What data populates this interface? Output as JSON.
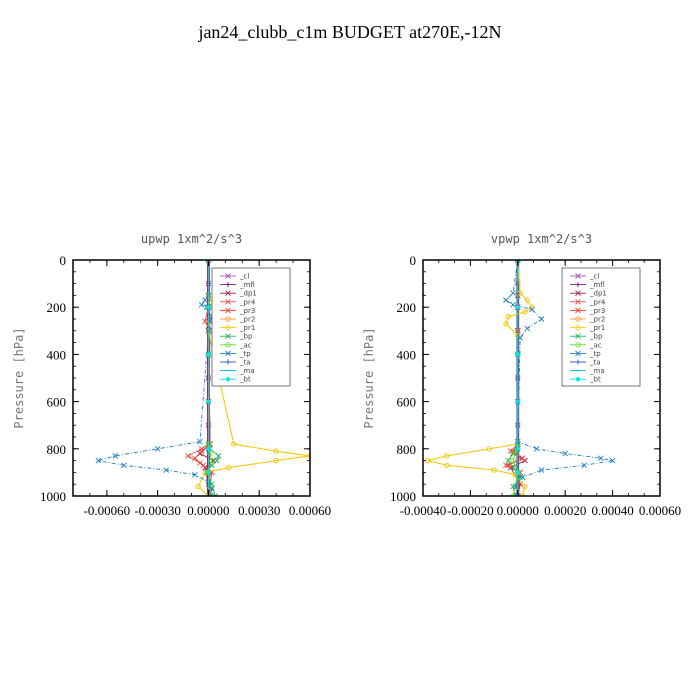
{
  "title": "jan24_clubb_c1m  BUDGET at270E,-12N",
  "colors": {
    "_cl": "#9b59b6",
    "_mfl": "#7a1f6e",
    "_dp1": "#a0204f",
    "_pr4": "#e0504a",
    "_pr3": "#ff3b2f",
    "_pr2": "#ff9a2e",
    "_pr1": "#f2d000",
    "_bp": "#22b45a",
    "_ac": "#66dd22",
    "_tp": "#1b7fc4",
    "_ta": "#2255cc",
    "_ma": "#00b4d8",
    "_bt": "#00e5e5"
  },
  "chart_data": [
    {
      "type": "line",
      "title": "upwp   1xm^2/s^3",
      "ylabel": "Pressure [hPa]",
      "xlim": [
        -0.0008,
        0.0006
      ],
      "ylim": [
        1000,
        0
      ],
      "xticks": [
        -0.0006,
        -0.0003,
        0.0,
        0.0003,
        0.0006
      ],
      "xtick_labels": [
        "-0.00060",
        "-0.00030",
        "0.00000",
        "0.00030",
        "0.00060"
      ],
      "yticks": [
        0,
        200,
        400,
        600,
        800,
        1000
      ],
      "ytick_labels": [
        "0",
        "200",
        "400",
        "600",
        "800",
        "1000"
      ],
      "legend_position": "top-right",
      "series": [
        {
          "name": "_cl",
          "marker": "cross",
          "x": [
            0,
            0,
            0,
            0,
            0,
            0,
            0,
            0,
            0,
            0,
            0
          ],
          "y": [
            0,
            100,
            200,
            300,
            400,
            500,
            600,
            700,
            800,
            900,
            1000
          ]
        },
        {
          "name": "_mfl",
          "marker": "plus",
          "x": [
            0,
            0,
            0,
            0,
            0,
            0,
            0,
            0,
            0,
            0,
            0
          ],
          "y": [
            0,
            100,
            200,
            300,
            400,
            500,
            600,
            700,
            800,
            900,
            1000
          ]
        },
        {
          "name": "_dp1",
          "marker": "cross",
          "x": [
            0,
            0,
            0,
            0,
            0,
            1e-05,
            -5e-05,
            3e-05,
            -2e-05,
            0,
            1e-05
          ],
          "y": [
            0,
            150,
            200,
            280,
            400,
            780,
            820,
            850,
            880,
            950,
            1000
          ]
        },
        {
          "name": "_pr4",
          "marker": "cross",
          "x": [
            0,
            0,
            0,
            -2e-05,
            1e-05,
            0,
            -4e-05,
            -0.00012,
            -5e-05,
            2e-05,
            0
          ],
          "y": [
            0,
            150,
            200,
            260,
            300,
            780,
            800,
            830,
            860,
            900,
            1000
          ]
        },
        {
          "name": "_pr3",
          "marker": "cross",
          "x": [
            0,
            0,
            0,
            0,
            0,
            1e-05,
            -4e-05,
            -8e-05,
            -3e-05,
            2e-05,
            0
          ],
          "y": [
            0,
            150,
            200,
            260,
            300,
            780,
            810,
            840,
            870,
            900,
            1000
          ]
        },
        {
          "name": "_pr2",
          "marker": "circle",
          "x": [
            0,
            0,
            2e-05,
            3e-05,
            1e-05,
            0,
            0.00015,
            0.0004,
            0.0006,
            0.0004,
            0.00012,
            -2e-05,
            -6e-05,
            0
          ],
          "y": [
            0,
            150,
            180,
            200,
            260,
            300,
            780,
            810,
            830,
            850,
            880,
            900,
            960,
            1000
          ]
        },
        {
          "name": "_pr1",
          "marker": "circle",
          "x": [
            0,
            0,
            2e-05,
            3e-05,
            1e-05,
            0,
            0.00015,
            0.0004,
            0.0006,
            0.0004,
            0.00012,
            -2e-05,
            -6e-05,
            0
          ],
          "y": [
            0,
            150,
            180,
            200,
            260,
            300,
            780,
            810,
            830,
            850,
            880,
            900,
            960,
            1000
          ]
        },
        {
          "name": "_bp",
          "marker": "cross",
          "x": [
            0,
            0,
            0,
            0,
            1e-05,
            6e-05,
            5e-05,
            2e-05,
            -1e-05,
            2e-05,
            4e-05
          ],
          "y": [
            0,
            200,
            400,
            780,
            800,
            830,
            850,
            870,
            900,
            950,
            1000
          ]
        },
        {
          "name": "_ac",
          "marker": "circle",
          "x": [
            0,
            0,
            0,
            1e-05,
            2e-05,
            0,
            1e-05,
            2e-05
          ],
          "y": [
            0,
            400,
            780,
            820,
            850,
            900,
            960,
            1000
          ]
        },
        {
          "name": "_tp",
          "marker": "cross",
          "x": [
            0,
            0,
            -2e-05,
            -4e-05,
            -1e-05,
            2e-05,
            1e-05,
            0,
            -5e-05,
            -0.0003,
            -0.00055,
            -0.00065,
            -0.0005,
            -0.00025,
            -8e-05,
            0,
            2e-05,
            1e-05
          ],
          "y": [
            0,
            150,
            170,
            190,
            200,
            240,
            260,
            300,
            770,
            800,
            830,
            850,
            870,
            890,
            910,
            940,
            970,
            1000
          ]
        },
        {
          "name": "_ta",
          "marker": "plus",
          "x": [
            0,
            0,
            0,
            0,
            0,
            0,
            0
          ],
          "y": [
            0,
            200,
            400,
            600,
            800,
            900,
            1000
          ]
        },
        {
          "name": "_ma",
          "marker": "dash",
          "x": [
            0,
            0,
            0,
            0,
            0,
            0,
            0
          ],
          "y": [
            0,
            200,
            400,
            600,
            800,
            900,
            1000
          ]
        },
        {
          "name": "_bt",
          "marker": "diamond",
          "x": [
            0,
            0,
            0,
            0,
            0,
            0,
            0
          ],
          "y": [
            0,
            200,
            400,
            600,
            800,
            900,
            1000
          ]
        }
      ]
    },
    {
      "type": "line",
      "title": "vpwp   1xm^2/s^3",
      "ylabel": "Pressure [hPa]",
      "xlim": [
        -0.0004,
        0.0006
      ],
      "ylim": [
        1000,
        0
      ],
      "xticks": [
        -0.0004,
        -0.0002,
        0.0,
        0.0002,
        0.0004,
        0.0006
      ],
      "xtick_labels": [
        "-0.00040",
        "-0.00020",
        "0.00000",
        "0.00020",
        "0.00040",
        "0.00060"
      ],
      "yticks": [
        0,
        200,
        400,
        600,
        800,
        1000
      ],
      "ytick_labels": [
        "0",
        "200",
        "400",
        "600",
        "800",
        "1000"
      ],
      "legend_position": "top-right",
      "series": [
        {
          "name": "_cl",
          "marker": "cross",
          "x": [
            0,
            0,
            0,
            0,
            0,
            0,
            0,
            0,
            0,
            0,
            0
          ],
          "y": [
            0,
            100,
            200,
            300,
            400,
            500,
            600,
            700,
            800,
            900,
            1000
          ]
        },
        {
          "name": "_mfl",
          "marker": "plus",
          "x": [
            0,
            0,
            0,
            0,
            0,
            0,
            0,
            0,
            0,
            0,
            0
          ],
          "y": [
            0,
            100,
            200,
            300,
            400,
            500,
            600,
            700,
            800,
            900,
            1000
          ]
        },
        {
          "name": "_dp1",
          "marker": "cross",
          "x": [
            0,
            0,
            0,
            0,
            0,
            -2e-05,
            3e-05,
            -3e-05,
            1e-05,
            0
          ],
          "y": [
            0,
            150,
            200,
            300,
            780,
            820,
            850,
            880,
            950,
            1000
          ]
        },
        {
          "name": "_pr4",
          "marker": "cross",
          "x": [
            0,
            0,
            0,
            0,
            -3e-05,
            2e-05,
            -5e-05,
            1e-05,
            0
          ],
          "y": [
            0,
            200,
            300,
            780,
            810,
            840,
            870,
            900,
            1000
          ]
        },
        {
          "name": "_pr3",
          "marker": "cross",
          "x": [
            0,
            0,
            0,
            0,
            -2e-05,
            2e-05,
            -4e-05,
            1e-05,
            0
          ],
          "y": [
            0,
            200,
            300,
            780,
            810,
            840,
            870,
            900,
            1000
          ]
        },
        {
          "name": "_pr2",
          "marker": "circle",
          "x": [
            0,
            1e-05,
            4e-05,
            6e-05,
            3e-05,
            -4e-05,
            -5e-05,
            0,
            0,
            -0.00012,
            -0.0003,
            -0.00038,
            -0.0003,
            -0.0001,
            -1e-05,
            3e-05,
            2e-05
          ],
          "y": [
            0,
            140,
            170,
            200,
            220,
            240,
            270,
            320,
            780,
            800,
            830,
            850,
            870,
            890,
            910,
            960,
            1000
          ]
        },
        {
          "name": "_pr1",
          "marker": "circle",
          "x": [
            0,
            1e-05,
            4e-05,
            6e-05,
            3e-05,
            -4e-05,
            -5e-05,
            0,
            0,
            -0.00012,
            -0.0003,
            -0.00038,
            -0.0003,
            -0.0001,
            -1e-05,
            3e-05,
            2e-05
          ],
          "y": [
            0,
            140,
            170,
            200,
            220,
            240,
            270,
            320,
            780,
            800,
            830,
            850,
            870,
            890,
            910,
            960,
            1000
          ]
        },
        {
          "name": "_bp",
          "marker": "cross",
          "x": [
            0,
            0,
            0,
            -2e-05,
            -4e-05,
            -2e-05,
            1e-05,
            -2e-05,
            -1e-05
          ],
          "y": [
            0,
            400,
            780,
            820,
            850,
            880,
            920,
            960,
            1000
          ]
        },
        {
          "name": "_ac",
          "marker": "circle",
          "x": [
            0,
            0,
            0,
            -1e-05,
            -2e-05,
            0,
            -1e-05,
            -2e-05
          ],
          "y": [
            0,
            400,
            780,
            820,
            850,
            900,
            960,
            1000
          ]
        },
        {
          "name": "_tp",
          "marker": "cross",
          "x": [
            0,
            -2e-05,
            -5e-05,
            -2e-05,
            6e-05,
            0.0001,
            4e-05,
            1e-05,
            0,
            8e-05,
            0.0002,
            0.00035,
            0.0004,
            0.00028,
            0.0001,
            2e-05,
            -1e-05,
            0
          ],
          "y": [
            0,
            140,
            170,
            190,
            210,
            250,
            290,
            330,
            770,
            800,
            820,
            840,
            850,
            870,
            890,
            920,
            960,
            1000
          ]
        },
        {
          "name": "_ta",
          "marker": "plus",
          "x": [
            0,
            0,
            0,
            0,
            0,
            0,
            0
          ],
          "y": [
            0,
            200,
            400,
            600,
            800,
            900,
            1000
          ]
        },
        {
          "name": "_ma",
          "marker": "dash",
          "x": [
            0,
            0,
            0,
            0,
            0,
            0,
            0
          ],
          "y": [
            0,
            200,
            400,
            600,
            800,
            900,
            1000
          ]
        },
        {
          "name": "_bt",
          "marker": "diamond",
          "x": [
            0,
            0,
            0,
            0,
            0,
            0,
            0
          ],
          "y": [
            0,
            200,
            400,
            600,
            800,
            900,
            1000
          ]
        }
      ]
    }
  ]
}
